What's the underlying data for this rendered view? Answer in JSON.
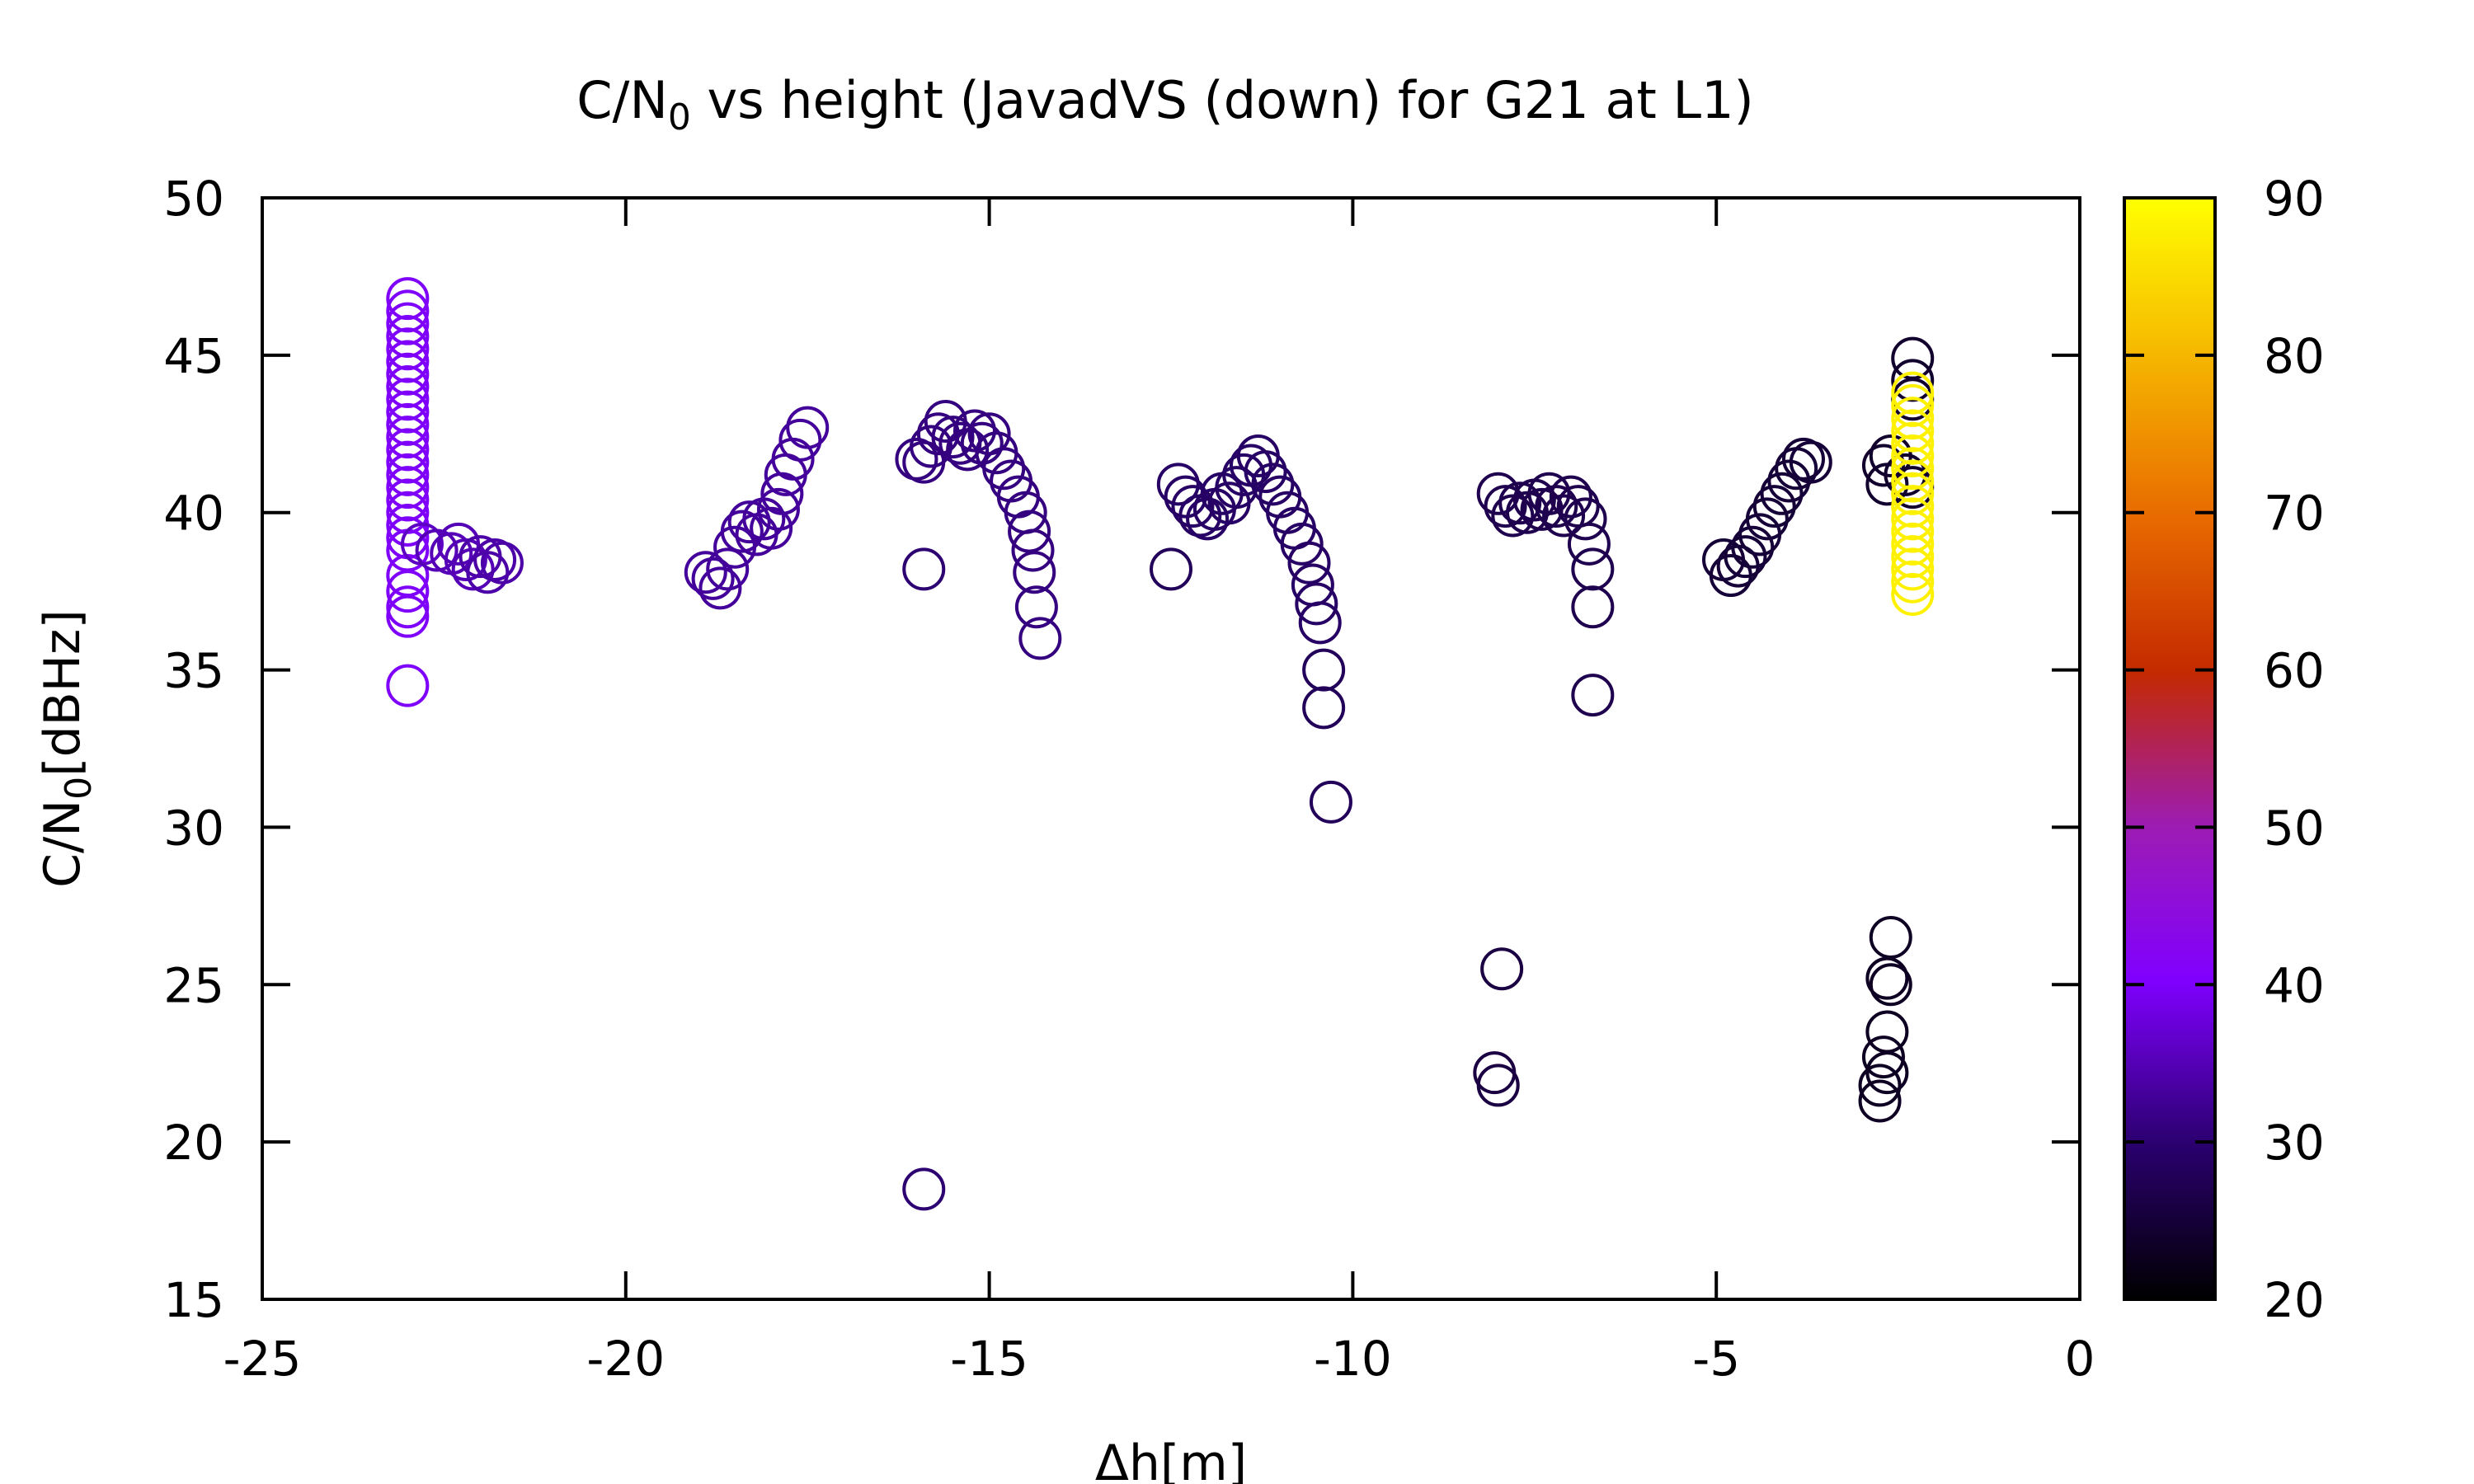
{
  "chart_data": {
    "type": "scatter",
    "title": {
      "main": "C/N",
      "sub": "0",
      "rest": " vs height (JavadVS (down) for G21 at L1)"
    },
    "xlabel": "Δh[m]",
    "ylabel": {
      "main": "C/N",
      "sub": "0",
      "rest": "[dBHz]"
    },
    "xlim": [
      -25,
      0
    ],
    "ylim": [
      15,
      50
    ],
    "xticks": [
      "-25",
      "-20",
      "-15",
      "-10",
      "-5",
      "0"
    ],
    "yticks": [
      "15",
      "20",
      "25",
      "30",
      "35",
      "40",
      "45",
      "50"
    ],
    "colorbar": {
      "range": [
        20,
        90
      ],
      "ticks": [
        "20",
        "30",
        "40",
        "50",
        "60",
        "70",
        "80",
        "90"
      ]
    },
    "marker": "open-circle",
    "grid": false,
    "points": [
      {
        "x": -23.0,
        "y": 46.8,
        "c": 40
      },
      {
        "x": -23.0,
        "y": 46.4,
        "c": 40
      },
      {
        "x": -23.0,
        "y": 46.0,
        "c": 40
      },
      {
        "x": -23.0,
        "y": 45.6,
        "c": 40
      },
      {
        "x": -23.0,
        "y": 45.2,
        "c": 40
      },
      {
        "x": -23.0,
        "y": 44.8,
        "c": 40
      },
      {
        "x": -23.0,
        "y": 44.4,
        "c": 40
      },
      {
        "x": -23.0,
        "y": 44.0,
        "c": 40
      },
      {
        "x": -23.0,
        "y": 43.6,
        "c": 40
      },
      {
        "x": -23.0,
        "y": 43.2,
        "c": 40
      },
      {
        "x": -23.0,
        "y": 42.8,
        "c": 40
      },
      {
        "x": -23.0,
        "y": 42.4,
        "c": 40
      },
      {
        "x": -23.0,
        "y": 42.0,
        "c": 40
      },
      {
        "x": -23.0,
        "y": 41.6,
        "c": 40
      },
      {
        "x": -23.0,
        "y": 41.2,
        "c": 40
      },
      {
        "x": -23.0,
        "y": 40.8,
        "c": 40
      },
      {
        "x": -23.0,
        "y": 40.4,
        "c": 40
      },
      {
        "x": -23.0,
        "y": 40.0,
        "c": 40
      },
      {
        "x": -23.0,
        "y": 39.6,
        "c": 40
      },
      {
        "x": -23.0,
        "y": 39.2,
        "c": 40
      },
      {
        "x": -23.0,
        "y": 38.8,
        "c": 40
      },
      {
        "x": -23.0,
        "y": 38.0,
        "c": 40
      },
      {
        "x": -23.0,
        "y": 37.5,
        "c": 40
      },
      {
        "x": -23.0,
        "y": 37.0,
        "c": 40
      },
      {
        "x": -23.0,
        "y": 36.7,
        "c": 40
      },
      {
        "x": -23.0,
        "y": 34.5,
        "c": 40
      },
      {
        "x": -22.8,
        "y": 39.0,
        "c": 36
      },
      {
        "x": -22.6,
        "y": 38.8,
        "c": 35
      },
      {
        "x": -22.4,
        "y": 38.7,
        "c": 35
      },
      {
        "x": -22.3,
        "y": 39.0,
        "c": 35
      },
      {
        "x": -22.2,
        "y": 38.5,
        "c": 35
      },
      {
        "x": -22.1,
        "y": 38.2,
        "c": 35
      },
      {
        "x": -22.0,
        "y": 38.6,
        "c": 34
      },
      {
        "x": -21.9,
        "y": 38.1,
        "c": 34
      },
      {
        "x": -21.8,
        "y": 38.5,
        "c": 34
      },
      {
        "x": -21.7,
        "y": 38.4,
        "c": 34
      },
      {
        "x": -18.9,
        "y": 38.1,
        "c": 33
      },
      {
        "x": -18.8,
        "y": 37.9,
        "c": 33
      },
      {
        "x": -18.7,
        "y": 37.6,
        "c": 33
      },
      {
        "x": -18.6,
        "y": 38.2,
        "c": 33
      },
      {
        "x": -18.5,
        "y": 38.9,
        "c": 33
      },
      {
        "x": -18.4,
        "y": 39.4,
        "c": 33
      },
      {
        "x": -18.3,
        "y": 39.7,
        "c": 33
      },
      {
        "x": -18.2,
        "y": 39.3,
        "c": 33
      },
      {
        "x": -18.1,
        "y": 39.8,
        "c": 33
      },
      {
        "x": -18.0,
        "y": 39.5,
        "c": 33
      },
      {
        "x": -17.9,
        "y": 40.1,
        "c": 33
      },
      {
        "x": -17.85,
        "y": 40.6,
        "c": 33
      },
      {
        "x": -17.8,
        "y": 41.2,
        "c": 33
      },
      {
        "x": -17.7,
        "y": 41.7,
        "c": 33
      },
      {
        "x": -17.6,
        "y": 42.3,
        "c": 33
      },
      {
        "x": -17.5,
        "y": 42.7,
        "c": 33
      },
      {
        "x": -16.0,
        "y": 41.7,
        "c": 31
      },
      {
        "x": -15.9,
        "y": 41.6,
        "c": 31
      },
      {
        "x": -15.8,
        "y": 42.1,
        "c": 31
      },
      {
        "x": -15.7,
        "y": 42.5,
        "c": 31
      },
      {
        "x": -15.6,
        "y": 42.9,
        "c": 31
      },
      {
        "x": -15.5,
        "y": 42.4,
        "c": 31
      },
      {
        "x": -15.4,
        "y": 42.2,
        "c": 31
      },
      {
        "x": -15.3,
        "y": 42.0,
        "c": 31
      },
      {
        "x": -15.2,
        "y": 42.6,
        "c": 31
      },
      {
        "x": -15.1,
        "y": 42.2,
        "c": 31
      },
      {
        "x": -15.0,
        "y": 42.5,
        "c": 31
      },
      {
        "x": -14.9,
        "y": 41.9,
        "c": 31
      },
      {
        "x": -14.8,
        "y": 41.4,
        "c": 31
      },
      {
        "x": -14.7,
        "y": 41.0,
        "c": 31
      },
      {
        "x": -14.6,
        "y": 40.5,
        "c": 31
      },
      {
        "x": -14.5,
        "y": 40.0,
        "c": 31
      },
      {
        "x": -14.45,
        "y": 39.4,
        "c": 31
      },
      {
        "x": -14.4,
        "y": 38.8,
        "c": 31
      },
      {
        "x": -14.38,
        "y": 38.1,
        "c": 31
      },
      {
        "x": -14.35,
        "y": 37.0,
        "c": 31
      },
      {
        "x": -14.3,
        "y": 36.0,
        "c": 31
      },
      {
        "x": -15.9,
        "y": 38.2,
        "c": 30
      },
      {
        "x": -15.9,
        "y": 18.5,
        "c": 30
      },
      {
        "x": -12.4,
        "y": 40.9,
        "c": 29
      },
      {
        "x": -12.3,
        "y": 40.5,
        "c": 29
      },
      {
        "x": -12.2,
        "y": 40.2,
        "c": 29
      },
      {
        "x": -12.1,
        "y": 39.9,
        "c": 29
      },
      {
        "x": -12.0,
        "y": 39.8,
        "c": 29
      },
      {
        "x": -11.9,
        "y": 40.1,
        "c": 29
      },
      {
        "x": -11.8,
        "y": 40.6,
        "c": 29
      },
      {
        "x": -11.7,
        "y": 40.3,
        "c": 29
      },
      {
        "x": -11.6,
        "y": 40.8,
        "c": 29
      },
      {
        "x": -11.5,
        "y": 41.2,
        "c": 29
      },
      {
        "x": -11.4,
        "y": 41.5,
        "c": 29
      },
      {
        "x": -11.3,
        "y": 41.8,
        "c": 29
      },
      {
        "x": -11.2,
        "y": 41.3,
        "c": 29
      },
      {
        "x": -11.1,
        "y": 40.9,
        "c": 29
      },
      {
        "x": -11.0,
        "y": 40.5,
        "c": 29
      },
      {
        "x": -10.9,
        "y": 40.0,
        "c": 29
      },
      {
        "x": -10.8,
        "y": 39.5,
        "c": 29
      },
      {
        "x": -10.7,
        "y": 39.0,
        "c": 29
      },
      {
        "x": -10.6,
        "y": 38.4,
        "c": 29
      },
      {
        "x": -10.55,
        "y": 37.7,
        "c": 29
      },
      {
        "x": -10.5,
        "y": 37.1,
        "c": 29
      },
      {
        "x": -10.45,
        "y": 36.5,
        "c": 29
      },
      {
        "x": -12.5,
        "y": 38.2,
        "c": 28
      },
      {
        "x": -10.4,
        "y": 35.0,
        "c": 28
      },
      {
        "x": -10.4,
        "y": 33.8,
        "c": 28
      },
      {
        "x": -10.3,
        "y": 30.8,
        "c": 28
      },
      {
        "x": -8.0,
        "y": 40.6,
        "c": 27
      },
      {
        "x": -7.9,
        "y": 40.2,
        "c": 27
      },
      {
        "x": -7.8,
        "y": 39.9,
        "c": 27
      },
      {
        "x": -7.7,
        "y": 40.3,
        "c": 27
      },
      {
        "x": -7.6,
        "y": 40.0,
        "c": 27
      },
      {
        "x": -7.5,
        "y": 40.4,
        "c": 27
      },
      {
        "x": -7.4,
        "y": 40.1,
        "c": 27
      },
      {
        "x": -7.3,
        "y": 40.6,
        "c": 27
      },
      {
        "x": -7.2,
        "y": 40.2,
        "c": 27
      },
      {
        "x": -7.1,
        "y": 39.9,
        "c": 27
      },
      {
        "x": -7.0,
        "y": 40.5,
        "c": 27
      },
      {
        "x": -6.9,
        "y": 40.2,
        "c": 27
      },
      {
        "x": -6.8,
        "y": 39.8,
        "c": 27
      },
      {
        "x": -6.75,
        "y": 39.0,
        "c": 27
      },
      {
        "x": -6.7,
        "y": 38.2,
        "c": 27
      },
      {
        "x": -6.7,
        "y": 37.0,
        "c": 27
      },
      {
        "x": -6.7,
        "y": 34.2,
        "c": 27
      },
      {
        "x": -7.95,
        "y": 25.5,
        "c": 26
      },
      {
        "x": -8.05,
        "y": 22.2,
        "c": 26
      },
      {
        "x": -8.0,
        "y": 21.8,
        "c": 26
      },
      {
        "x": -4.9,
        "y": 38.5,
        "c": 25
      },
      {
        "x": -4.8,
        "y": 38.0,
        "c": 25
      },
      {
        "x": -4.7,
        "y": 38.3,
        "c": 25
      },
      {
        "x": -4.6,
        "y": 38.6,
        "c": 25
      },
      {
        "x": -4.5,
        "y": 38.9,
        "c": 25
      },
      {
        "x": -4.4,
        "y": 39.3,
        "c": 25
      },
      {
        "x": -4.3,
        "y": 39.8,
        "c": 25
      },
      {
        "x": -4.2,
        "y": 40.2,
        "c": 25
      },
      {
        "x": -4.1,
        "y": 40.6,
        "c": 25
      },
      {
        "x": -4.0,
        "y": 41.0,
        "c": 25
      },
      {
        "x": -3.9,
        "y": 41.4,
        "c": 25
      },
      {
        "x": -3.8,
        "y": 41.7,
        "c": 25
      },
      {
        "x": -3.7,
        "y": 41.6,
        "c": 25
      },
      {
        "x": -2.7,
        "y": 41.5,
        "c": 24
      },
      {
        "x": -2.65,
        "y": 40.9,
        "c": 24
      },
      {
        "x": -2.6,
        "y": 41.8,
        "c": 24
      },
      {
        "x": -2.4,
        "y": 41.2,
        "c": 24
      },
      {
        "x": -2.3,
        "y": 40.8,
        "c": 24
      },
      {
        "x": -2.3,
        "y": 44.9,
        "c": 24
      },
      {
        "x": -2.3,
        "y": 44.2,
        "c": 24
      },
      {
        "x": -2.3,
        "y": 43.6,
        "c": 24
      },
      {
        "x": -2.6,
        "y": 26.5,
        "c": 23
      },
      {
        "x": -2.65,
        "y": 25.2,
        "c": 23
      },
      {
        "x": -2.6,
        "y": 25.0,
        "c": 23
      },
      {
        "x": -2.65,
        "y": 23.5,
        "c": 23
      },
      {
        "x": -2.7,
        "y": 22.7,
        "c": 23
      },
      {
        "x": -2.65,
        "y": 22.2,
        "c": 23
      },
      {
        "x": -2.75,
        "y": 21.8,
        "c": 23
      },
      {
        "x": -2.75,
        "y": 21.3,
        "c": 23
      },
      {
        "x": -2.3,
        "y": 43.8,
        "c": 88
      },
      {
        "x": -2.3,
        "y": 43.4,
        "c": 88
      },
      {
        "x": -2.3,
        "y": 43.0,
        "c": 88
      },
      {
        "x": -2.3,
        "y": 42.6,
        "c": 88
      },
      {
        "x": -2.3,
        "y": 42.2,
        "c": 88
      },
      {
        "x": -2.3,
        "y": 41.8,
        "c": 88
      },
      {
        "x": -2.3,
        "y": 41.4,
        "c": 88
      },
      {
        "x": -2.3,
        "y": 41.0,
        "c": 88
      },
      {
        "x": -2.3,
        "y": 40.6,
        "c": 88
      },
      {
        "x": -2.3,
        "y": 40.2,
        "c": 88
      },
      {
        "x": -2.3,
        "y": 39.8,
        "c": 88
      },
      {
        "x": -2.3,
        "y": 39.4,
        "c": 88
      },
      {
        "x": -2.3,
        "y": 39.0,
        "c": 88
      },
      {
        "x": -2.3,
        "y": 38.6,
        "c": 88
      },
      {
        "x": -2.3,
        "y": 38.2,
        "c": 88
      },
      {
        "x": -2.3,
        "y": 37.8,
        "c": 88
      },
      {
        "x": -2.3,
        "y": 37.4,
        "c": 88
      }
    ]
  }
}
